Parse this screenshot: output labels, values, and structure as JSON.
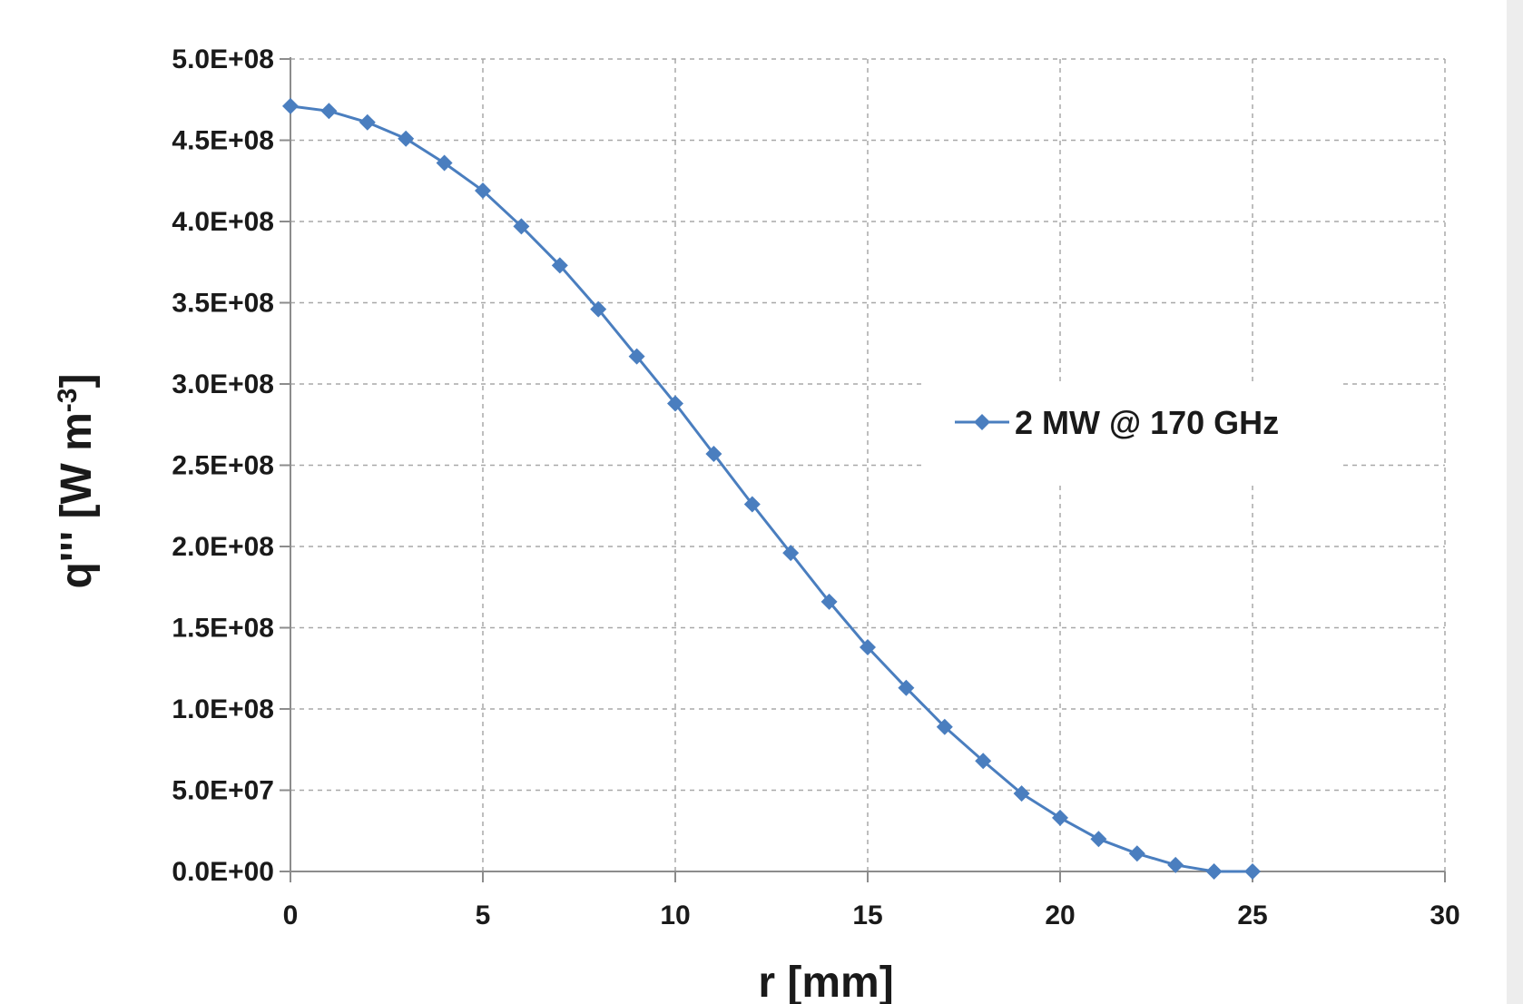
{
  "chart_data": {
    "type": "line",
    "xlabel": "r [mm]",
    "ylabel": "q''' [W m",
    "ylabel_superscript": "-3",
    "ylabel_suffix": "]",
    "xlim": [
      0,
      30
    ],
    "ylim": [
      0,
      500000000
    ],
    "xticks": [
      0,
      5,
      10,
      15,
      20,
      25,
      30
    ],
    "xtick_labels": [
      "0",
      "5",
      "10",
      "15",
      "20",
      "25",
      "30"
    ],
    "yticks": [
      0,
      50000000,
      100000000,
      150000000,
      200000000,
      250000000,
      300000000,
      350000000,
      400000000,
      450000000,
      500000000
    ],
    "ytick_labels": [
      "0.0E+00",
      "5.0E+07",
      "1.0E+08",
      "1.5E+08",
      "2.0E+08",
      "2.5E+08",
      "3.0E+08",
      "3.5E+08",
      "4.0E+08",
      "4.5E+08",
      "5.0E+08"
    ],
    "grid": true,
    "legend_position": "center-right",
    "series": [
      {
        "name": "2 MW @ 170 GHz",
        "color": "#4a7ebf",
        "marker": "diamond",
        "x": [
          0,
          1,
          2,
          3,
          4,
          5,
          6,
          7,
          8,
          9,
          10,
          11,
          12,
          13,
          14,
          15,
          16,
          17,
          18,
          19,
          20,
          21,
          22,
          23,
          24,
          25
        ],
        "y": [
          471000000,
          468000000,
          461000000,
          451000000,
          436000000,
          419000000,
          397000000,
          373000000,
          346000000,
          317000000,
          288000000,
          257000000,
          226000000,
          196000000,
          166000000,
          138000000,
          113000000,
          89000000,
          68000000,
          48000000,
          33000000,
          20000000,
          11000000,
          4000000,
          0,
          0
        ]
      }
    ]
  }
}
